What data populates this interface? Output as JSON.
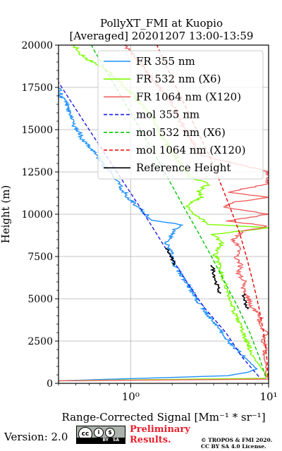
{
  "chart_data": {
    "type": "line",
    "title": "PollyXT_FMI at Kuopio",
    "subtitle": "[Averaged] 20201207 13:00-13:59",
    "xlabel": "Range-Corrected Signal [Mm⁻¹ * sr⁻¹]",
    "ylabel": "Height (m)",
    "xscale": "log",
    "xlim": [
      0.3,
      10
    ],
    "ylim": [
      0,
      20000
    ],
    "xticks": [
      1,
      10
    ],
    "xtick_labels": [
      "10⁰",
      "10¹"
    ],
    "yticks": [
      0,
      2500,
      5000,
      7500,
      10000,
      12500,
      15000,
      17500,
      20000
    ],
    "ytick_labels": [
      "0",
      "2500",
      "5000",
      "7500",
      "10000",
      "12500",
      "15000",
      "17500",
      "20000"
    ],
    "grid": true,
    "legend_position": "top-right",
    "series": [
      {
        "name": "FR 355 nm",
        "color": "#1e90ff",
        "style": "solid",
        "noisy": true,
        "points": [
          [
            0.3,
            150
          ],
          [
            5,
            450
          ],
          [
            7,
            650
          ],
          [
            8.2,
            850
          ],
          [
            7.4,
            1200
          ],
          [
            6.2,
            1800
          ],
          [
            5.1,
            2500
          ],
          [
            4.1,
            3500
          ],
          [
            3.3,
            4500
          ],
          [
            2.75,
            5500
          ],
          [
            2.3,
            6500
          ],
          [
            2.05,
            7000
          ],
          [
            2.0,
            7500
          ],
          [
            1.9,
            8000
          ],
          [
            1.8,
            8300
          ],
          [
            1.9,
            8500
          ],
          [
            2.0,
            8750
          ],
          [
            2.1,
            9100
          ],
          [
            2.3,
            9400
          ],
          [
            1.5,
            9600
          ],
          [
            1.28,
            10000
          ],
          [
            1.1,
            10500
          ],
          [
            0.95,
            11000
          ],
          [
            0.82,
            11800
          ],
          [
            0.72,
            12400
          ],
          [
            0.62,
            13000
          ],
          [
            0.55,
            13600
          ],
          [
            0.5,
            14000
          ],
          [
            0.45,
            14400
          ],
          [
            0.42,
            14900
          ],
          [
            0.38,
            15300
          ],
          [
            0.38,
            15700
          ],
          [
            0.36,
            16000
          ],
          [
            0.34,
            16600
          ],
          [
            0.31,
            17000
          ],
          [
            0.3,
            17500
          ]
        ]
      },
      {
        "name": "FR 532 nm (X6)",
        "color": "#7cfc00",
        "style": "solid",
        "noisy": true,
        "points": [
          [
            0.3,
            150
          ],
          [
            9.5,
            300
          ],
          [
            9.8,
            500
          ],
          [
            9,
            800
          ],
          [
            8,
            1400
          ],
          [
            7.2,
            2200
          ],
          [
            6.5,
            3000
          ],
          [
            5.8,
            4000
          ],
          [
            5.2,
            5000
          ],
          [
            4.8,
            6000
          ],
          [
            4.4,
            7000
          ],
          [
            4.1,
            7600
          ],
          [
            4.3,
            8000
          ],
          [
            4.6,
            8300
          ],
          [
            4.2,
            8600
          ],
          [
            3.9,
            8800
          ],
          [
            10,
            9200
          ],
          [
            3.7,
            9400
          ],
          [
            3.3,
            9700
          ],
          [
            2.8,
            10100
          ],
          [
            2.5,
            10500
          ],
          [
            3.3,
            11000
          ],
          [
            3.1,
            11400
          ],
          [
            3.7,
            11800
          ],
          [
            2.7,
            12200
          ],
          [
            2.4,
            12700
          ],
          [
            2.2,
            13200
          ],
          [
            1.95,
            13800
          ],
          [
            1.75,
            14400
          ],
          [
            1.6,
            15000
          ],
          [
            1.45,
            15600
          ],
          [
            1.2,
            16500
          ],
          [
            1.0,
            17200
          ],
          [
            0.8,
            18000
          ],
          [
            0.6,
            18800
          ],
          [
            0.45,
            19300
          ],
          [
            0.42,
            19700
          ],
          [
            0.38,
            20000
          ]
        ]
      },
      {
        "name": "FR 1064 nm (X120)",
        "color": "#f06060",
        "style": "solid",
        "noisy": true,
        "points": [
          [
            0.3,
            150
          ],
          [
            10,
            250
          ],
          [
            9.5,
            500
          ],
          [
            9.6,
            1000
          ],
          [
            9.3,
            1500
          ],
          [
            9.5,
            2000
          ],
          [
            9.2,
            2500
          ],
          [
            9.6,
            3000
          ],
          [
            8.5,
            3500
          ],
          [
            8.8,
            4000
          ],
          [
            7.5,
            4500
          ],
          [
            7.2,
            5000
          ],
          [
            6.5,
            5500
          ],
          [
            6.8,
            6000
          ],
          [
            6.0,
            6500
          ],
          [
            6.3,
            7000
          ],
          [
            5.8,
            7500
          ],
          [
            6.2,
            8000
          ],
          [
            5.5,
            8500
          ],
          [
            6.6,
            9000
          ],
          [
            10,
            9300
          ],
          [
            5.0,
            9600
          ],
          [
            10,
            10000
          ],
          [
            4.8,
            10400
          ],
          [
            5.5,
            10700
          ],
          [
            10,
            11000
          ],
          [
            5.0,
            11300
          ],
          [
            10,
            11800
          ],
          [
            10,
            12500
          ],
          [
            3.2,
            13500
          ],
          [
            2.7,
            14500
          ],
          [
            2.3,
            15500
          ],
          [
            2.0,
            16500
          ],
          [
            1.6,
            17500
          ],
          [
            1.3,
            18500
          ],
          [
            1.1,
            19200
          ],
          [
            1.0,
            19600
          ],
          [
            0.9,
            20000
          ]
        ]
      },
      {
        "name": "mol 355 nm",
        "color": "#1a1ae6",
        "style": "dashed",
        "points": [
          [
            8.5,
            400
          ],
          [
            6.5,
            1500
          ],
          [
            4.9,
            3000
          ],
          [
            3.4,
            4500
          ],
          [
            2.55,
            6000
          ],
          [
            1.95,
            7500
          ],
          [
            1.5,
            9000
          ],
          [
            1.15,
            10500
          ],
          [
            0.87,
            12000
          ],
          [
            0.66,
            13500
          ],
          [
            0.5,
            15000
          ],
          [
            0.38,
            16500
          ],
          [
            0.3,
            17800
          ]
        ]
      },
      {
        "name": "mol 532 nm (X6)",
        "color": "#00c800",
        "style": "dashed",
        "points": [
          [
            9.5,
            400
          ],
          [
            8.6,
            1500
          ],
          [
            7.3,
            3000
          ],
          [
            6.0,
            4500
          ],
          [
            4.8,
            6000
          ],
          [
            3.85,
            7500
          ],
          [
            3.05,
            9000
          ],
          [
            2.4,
            10500
          ],
          [
            1.9,
            12000
          ],
          [
            1.5,
            13500
          ],
          [
            1.18,
            15000
          ],
          [
            0.92,
            16500
          ],
          [
            0.72,
            18000
          ],
          [
            0.56,
            19500
          ],
          [
            0.52,
            20000
          ]
        ]
      },
      {
        "name": "mol 1064 nm (X120)",
        "color": "#e60000",
        "style": "dashed",
        "points": [
          [
            9.9,
            400
          ],
          [
            9.7,
            1500
          ],
          [
            9.2,
            3000
          ],
          [
            8.5,
            4500
          ],
          [
            7.7,
            6000
          ],
          [
            6.9,
            7500
          ],
          [
            6.1,
            9000
          ],
          [
            5.2,
            10500
          ],
          [
            4.4,
            12000
          ],
          [
            3.7,
            13500
          ],
          [
            3.0,
            15000
          ],
          [
            2.45,
            16500
          ],
          [
            2.0,
            18000
          ],
          [
            1.65,
            19500
          ],
          [
            1.55,
            20000
          ]
        ]
      },
      {
        "name": "Reference Height",
        "color": "#000000",
        "style": "solid",
        "segments": [
          [
            [
              1.82,
              8000
            ],
            [
              1.95,
              7500
            ],
            [
              2.08,
              7000
            ]
          ],
          [
            [
              3.9,
              7000
            ],
            [
              4.15,
              6000
            ],
            [
              4.45,
              5300
            ]
          ],
          [
            [
              6.5,
              5300
            ],
            [
              6.8,
              4800
            ],
            [
              7.0,
              4400
            ]
          ]
        ]
      }
    ]
  },
  "footer": {
    "version": "Version: 2.0",
    "license_badge": {
      "symbols": [
        "cc",
        "i",
        "$"
      ],
      "labels": [
        "BY",
        "SA"
      ]
    },
    "preliminary": [
      "Preliminary",
      "Results."
    ],
    "copyright": [
      "© TROPOS & FMI 2020.",
      "CC BY SA 4.0 License."
    ]
  }
}
